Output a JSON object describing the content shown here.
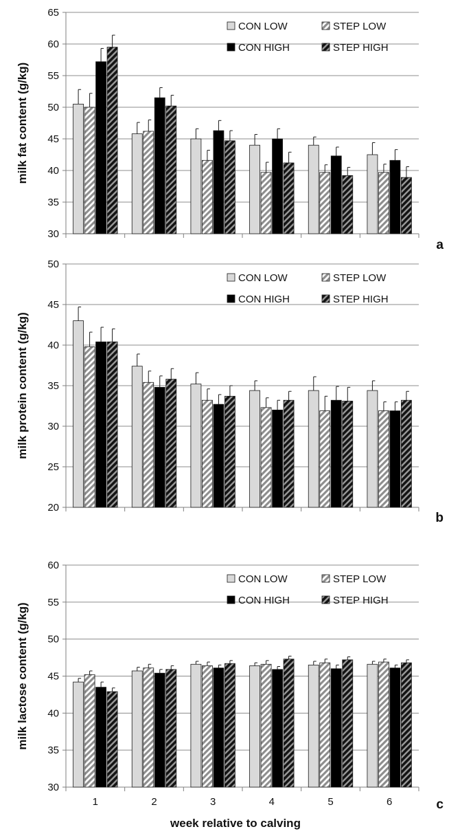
{
  "chart_data": [
    {
      "type": "bar",
      "panel_label": "a",
      "ylabel": "milk fat content (g/kg)",
      "xlabel": "",
      "ylim": [
        30,
        65
      ],
      "yticks": [
        30,
        35,
        40,
        45,
        50,
        55,
        60,
        65
      ],
      "categories": [
        "1",
        "2",
        "3",
        "4",
        "5",
        "6"
      ],
      "legend_position": "top-right",
      "series": [
        {
          "name": "CON LOW",
          "style": "light",
          "values": [
            50.5,
            45.8,
            45.0,
            44.0,
            44.0,
            42.5
          ],
          "errors": [
            2.3,
            1.8,
            1.6,
            1.7,
            1.3,
            1.9
          ]
        },
        {
          "name": "STEP LOW",
          "style": "light-hatch",
          "values": [
            50.0,
            46.2,
            41.6,
            39.7,
            39.7,
            39.7
          ],
          "errors": [
            2.2,
            1.8,
            1.6,
            1.6,
            1.2,
            1.3
          ]
        },
        {
          "name": "CON HIGH",
          "style": "black",
          "values": [
            57.2,
            51.5,
            46.3,
            45.0,
            42.3,
            41.6
          ],
          "errors": [
            2.1,
            1.6,
            1.6,
            1.6,
            1.4,
            1.7
          ]
        },
        {
          "name": "STEP HIGH",
          "style": "dark-hatch",
          "values": [
            59.5,
            50.2,
            44.7,
            41.2,
            39.2,
            38.9
          ],
          "errors": [
            1.9,
            1.7,
            1.6,
            1.7,
            1.3,
            1.7
          ]
        }
      ]
    },
    {
      "type": "bar",
      "panel_label": "b",
      "ylabel": "milk protein content (g/kg)",
      "xlabel": "",
      "ylim": [
        20,
        50
      ],
      "yticks": [
        20,
        25,
        30,
        35,
        40,
        45,
        50
      ],
      "categories": [
        "1",
        "2",
        "3",
        "4",
        "5",
        "6"
      ],
      "legend_position": "top-right",
      "series": [
        {
          "name": "CON LOW",
          "style": "light",
          "values": [
            43.0,
            37.4,
            35.2,
            34.4,
            34.4,
            34.4
          ],
          "errors": [
            1.7,
            1.5,
            1.4,
            1.2,
            1.7,
            1.2
          ]
        },
        {
          "name": "STEP LOW",
          "style": "light-hatch",
          "values": [
            39.8,
            35.4,
            33.2,
            32.3,
            31.9,
            31.9
          ],
          "errors": [
            1.8,
            1.4,
            1.4,
            1.2,
            1.8,
            1.1
          ]
        },
        {
          "name": "CON HIGH",
          "style": "black",
          "values": [
            40.4,
            34.8,
            32.7,
            32.0,
            33.2,
            31.9
          ],
          "errors": [
            1.8,
            1.4,
            1.2,
            1.2,
            1.7,
            1.1
          ]
        },
        {
          "name": "STEP HIGH",
          "style": "dark-hatch",
          "values": [
            40.4,
            35.8,
            33.7,
            33.2,
            33.1,
            33.2
          ],
          "errors": [
            1.6,
            1.3,
            1.3,
            1.1,
            1.7,
            1.1
          ]
        }
      ]
    },
    {
      "type": "bar",
      "panel_label": "c",
      "ylabel": "milk lactose content (g/kg)",
      "xlabel": "week relative to calving",
      "ylim": [
        30,
        60
      ],
      "yticks": [
        30,
        35,
        40,
        45,
        50,
        55,
        60
      ],
      "categories": [
        "1",
        "2",
        "3",
        "4",
        "5",
        "6"
      ],
      "legend_position": "top-right",
      "series": [
        {
          "name": "CON LOW",
          "style": "light",
          "values": [
            44.2,
            45.7,
            46.6,
            46.4,
            46.5,
            46.6
          ],
          "errors": [
            0.5,
            0.5,
            0.4,
            0.4,
            0.5,
            0.4
          ]
        },
        {
          "name": "STEP LOW",
          "style": "light-hatch",
          "values": [
            45.2,
            46.1,
            46.4,
            46.6,
            46.8,
            46.9
          ],
          "errors": [
            0.5,
            0.5,
            0.5,
            0.5,
            0.5,
            0.4
          ]
        },
        {
          "name": "CON HIGH",
          "style": "black",
          "values": [
            43.5,
            45.4,
            46.1,
            45.9,
            46.0,
            46.1
          ],
          "errors": [
            0.7,
            0.5,
            0.4,
            0.4,
            0.5,
            0.4
          ]
        },
        {
          "name": "STEP HIGH",
          "style": "dark-hatch",
          "values": [
            42.9,
            45.9,
            46.7,
            47.3,
            47.2,
            46.8
          ],
          "errors": [
            0.5,
            0.5,
            0.4,
            0.4,
            0.4,
            0.4
          ]
        }
      ]
    }
  ]
}
